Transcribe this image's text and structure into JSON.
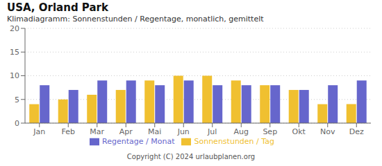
{
  "chart_data": {
    "type": "bar",
    "title": "USA, Orland Park",
    "subtitle": "Klimadiagramm: Sonnenstunden / Regentage, monatlich, gemittelt",
    "categories": [
      "Jan",
      "Feb",
      "Mar",
      "Apr",
      "Mai",
      "Jun",
      "Jul",
      "Aug",
      "Sep",
      "Okt",
      "Nov",
      "Dez"
    ],
    "series": [
      {
        "name": "Sonnenstunden / Tag",
        "color": "#f0c030",
        "values": [
          4,
          5,
          6,
          7,
          9,
          10,
          10,
          9,
          8,
          7,
          4,
          4
        ]
      },
      {
        "name": "Regentage / Monat",
        "color": "#6666cc",
        "values": [
          8,
          7,
          9,
          9,
          8,
          9,
          8,
          8,
          8,
          7,
          8,
          9
        ]
      }
    ],
    "ylim": [
      0,
      20
    ],
    "yticks": [
      0,
      5,
      10,
      15,
      20
    ],
    "grid": true,
    "legend": "bottom",
    "annotations": [
      "Copyright (C) 2024 urlaubplanen.org"
    ]
  }
}
